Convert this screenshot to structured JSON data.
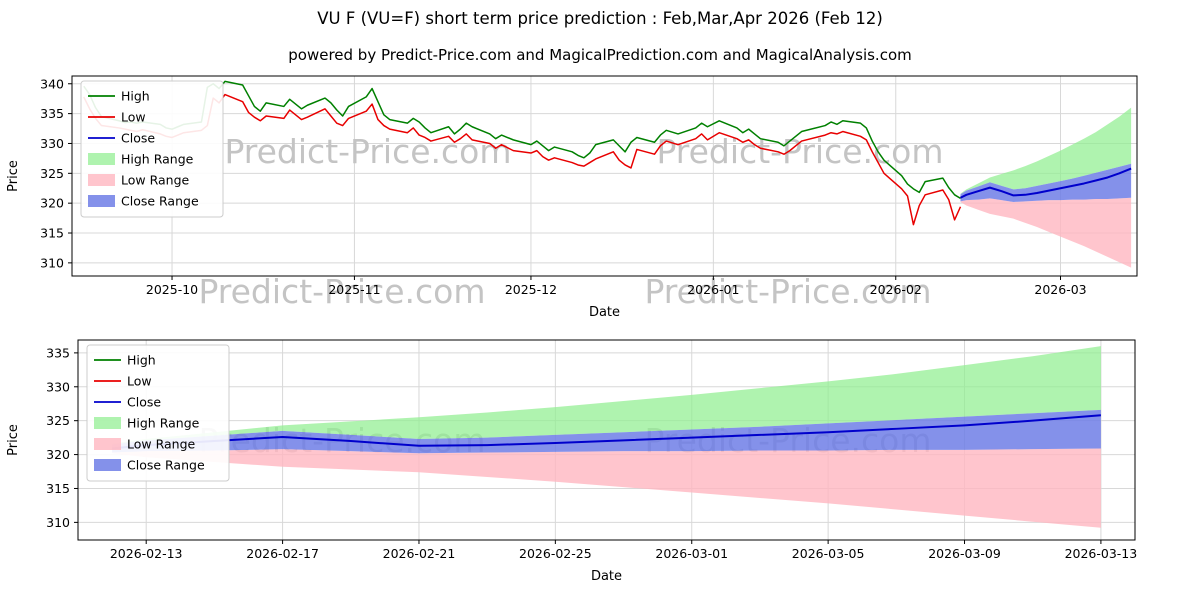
{
  "title": "VU F (VU=F) short term price prediction : Feb,Mar,Apr 2026 (Feb 12)",
  "subtitle": "powered by Predict-Price.com and MagicalPrediction.com and MagicalAnalysis.com",
  "watermark_text": "Predict-Price.com",
  "axes": {
    "x_label": "Date",
    "y_label": "Price"
  },
  "legend": [
    "High",
    "Low",
    "Close",
    "High Range",
    "Low Range",
    "Close Range"
  ],
  "colors": {
    "high": "#008000",
    "low": "#e80000",
    "close": "#0000cc",
    "high_range": "#90ee90",
    "low_range": "#ffb6c1",
    "close_range": "#6e7ee6",
    "grid": "#d8d8d8",
    "spine": "#000000",
    "watermark": "#c4c4c4",
    "text": "#000000"
  },
  "chart_data": [
    {
      "type": "line",
      "title": "price history with prediction ranges",
      "x_domain": [
        "2025-09-14",
        "2026-03-14"
      ],
      "y_domain": [
        307.8,
        341.3
      ],
      "grid": true,
      "legend_position": "upper-left",
      "y_ticks": [
        310,
        315,
        320,
        325,
        330,
        335,
        340
      ],
      "x_ticks": [
        {
          "v": "2025-10-01",
          "label": "2025-10"
        },
        {
          "v": "2025-11-01",
          "label": "2025-11"
        },
        {
          "v": "2025-12-01",
          "label": "2025-12"
        },
        {
          "v": "2026-01-01",
          "label": "2026-01"
        },
        {
          "v": "2026-02-01",
          "label": "2026-02"
        },
        {
          "v": "2026-03-01",
          "label": "2026-03"
        }
      ],
      "history": {
        "dates": [
          "2025-09-16",
          "2025-09-17",
          "2025-09-18",
          "2025-09-19",
          "2025-09-22",
          "2025-09-23",
          "2025-09-24",
          "2025-09-25",
          "2025-09-26",
          "2025-09-29",
          "2025-09-30",
          "2025-10-01",
          "2025-10-02",
          "2025-10-03",
          "2025-10-06",
          "2025-10-07",
          "2025-10-08",
          "2025-10-09",
          "2025-10-10",
          "2025-10-13",
          "2025-10-14",
          "2025-10-15",
          "2025-10-16",
          "2025-10-17",
          "2025-10-20",
          "2025-10-21",
          "2025-10-22",
          "2025-10-23",
          "2025-10-24",
          "2025-10-27",
          "2025-10-28",
          "2025-10-29",
          "2025-10-30",
          "2025-10-31",
          "2025-11-03",
          "2025-11-04",
          "2025-11-05",
          "2025-11-06",
          "2025-11-07",
          "2025-11-10",
          "2025-11-11",
          "2025-11-12",
          "2025-11-13",
          "2025-11-14",
          "2025-11-17",
          "2025-11-18",
          "2025-11-19",
          "2025-11-20",
          "2025-11-21",
          "2025-11-24",
          "2025-11-25",
          "2025-11-26",
          "2025-11-28",
          "2025-12-01",
          "2025-12-02",
          "2025-12-03",
          "2025-12-04",
          "2025-12-05",
          "2025-12-08",
          "2025-12-09",
          "2025-12-10",
          "2025-12-11",
          "2025-12-12",
          "2025-12-15",
          "2025-12-16",
          "2025-12-17",
          "2025-12-18",
          "2025-12-19",
          "2025-12-22",
          "2025-12-23",
          "2025-12-24",
          "2025-12-26",
          "2025-12-29",
          "2025-12-30",
          "2025-12-31",
          "2026-01-02",
          "2026-01-05",
          "2026-01-06",
          "2026-01-07",
          "2026-01-08",
          "2026-01-09",
          "2026-01-12",
          "2026-01-13",
          "2026-01-14",
          "2026-01-15",
          "2026-01-16",
          "2026-01-20",
          "2026-01-21",
          "2026-01-22",
          "2026-01-23",
          "2026-01-26",
          "2026-01-27",
          "2026-01-28",
          "2026-01-29",
          "2026-01-30",
          "2026-02-02",
          "2026-02-03",
          "2026-02-04",
          "2026-02-05",
          "2026-02-06",
          "2026-02-09",
          "2026-02-10",
          "2026-02-11",
          "2026-02-12"
        ],
        "high": [
          339.6,
          338.2,
          336.0,
          334.5,
          333.8,
          333.5,
          333.6,
          333.4,
          333.6,
          333.2,
          332.6,
          332.4,
          332.8,
          333.2,
          333.6,
          339.4,
          340.0,
          339.2,
          340.4,
          339.8,
          338.0,
          336.2,
          335.4,
          336.8,
          336.2,
          337.4,
          336.6,
          335.8,
          336.4,
          337.6,
          336.8,
          335.6,
          334.6,
          336.2,
          337.8,
          339.2,
          337.0,
          334.8,
          334.0,
          333.4,
          334.2,
          333.6,
          332.6,
          331.8,
          332.8,
          331.6,
          332.4,
          333.4,
          332.8,
          331.6,
          330.8,
          331.4,
          330.6,
          329.8,
          330.4,
          329.6,
          328.8,
          329.4,
          328.6,
          328.0,
          327.6,
          328.4,
          329.8,
          330.6,
          329.6,
          328.6,
          330.2,
          331.0,
          330.2,
          331.4,
          332.2,
          331.6,
          332.6,
          333.4,
          332.8,
          333.8,
          332.6,
          331.8,
          332.4,
          331.6,
          330.8,
          330.2,
          329.6,
          330.4,
          331.2,
          332.0,
          333.0,
          333.6,
          333.2,
          333.8,
          333.4,
          332.6,
          330.4,
          328.6,
          327.2,
          324.6,
          323.2,
          322.4,
          321.8,
          323.6,
          324.2,
          322.6,
          321.4,
          320.8
        ],
        "low": [
          337.8,
          335.8,
          334.2,
          333.0,
          332.6,
          332.4,
          332.2,
          332.0,
          332.3,
          331.6,
          331.2,
          331.0,
          331.4,
          331.8,
          332.2,
          333.0,
          337.6,
          336.8,
          338.2,
          337.0,
          335.2,
          334.4,
          333.8,
          334.6,
          334.2,
          335.6,
          334.8,
          334.0,
          334.4,
          335.8,
          334.6,
          333.4,
          333.0,
          334.2,
          335.4,
          336.6,
          334.0,
          333.0,
          332.4,
          331.8,
          332.6,
          331.4,
          331.0,
          330.4,
          331.2,
          330.2,
          330.8,
          331.6,
          330.6,
          330.0,
          329.2,
          329.8,
          328.8,
          328.4,
          328.8,
          327.8,
          327.2,
          327.6,
          326.8,
          326.4,
          326.2,
          326.8,
          327.4,
          328.6,
          327.2,
          326.4,
          325.9,
          329.0,
          328.2,
          329.6,
          330.4,
          329.8,
          330.8,
          331.6,
          330.6,
          331.8,
          330.8,
          330.2,
          330.6,
          329.8,
          329.2,
          328.6,
          328.2,
          328.8,
          329.6,
          330.4,
          331.4,
          331.8,
          331.6,
          332.0,
          331.2,
          330.6,
          328.6,
          326.8,
          325.0,
          322.4,
          321.2,
          316.4,
          319.6,
          321.4,
          322.2,
          320.6,
          317.2,
          319.4
        ]
      },
      "prediction": {
        "dates": [
          "2026-02-12",
          "2026-02-13",
          "2026-02-15",
          "2026-02-17",
          "2026-02-19",
          "2026-02-21",
          "2026-02-23",
          "2026-02-25",
          "2026-02-27",
          "2026-03-01",
          "2026-03-03",
          "2026-03-05",
          "2026-03-07",
          "2026-03-09",
          "2026-03-11",
          "2026-03-13"
        ],
        "close": [
          320.9,
          321.4,
          322.0,
          322.6,
          322.0,
          321.3,
          321.4,
          321.7,
          322.1,
          322.5,
          322.9,
          323.3,
          323.8,
          324.3,
          325.0,
          325.8
        ],
        "close_high": [
          321.5,
          322.1,
          322.8,
          323.5,
          322.9,
          322.3,
          322.5,
          322.9,
          323.3,
          323.7,
          324.1,
          324.6,
          325.1,
          325.6,
          326.1,
          326.6
        ],
        "close_low": [
          320.3,
          320.5,
          320.6,
          320.8,
          320.5,
          320.2,
          320.3,
          320.4,
          320.5,
          320.5,
          320.6,
          320.6,
          320.7,
          320.7,
          320.8,
          320.9
        ],
        "high_top": [
          321.6,
          322.3,
          323.3,
          324.3,
          324.9,
          325.5,
          326.2,
          327.0,
          327.9,
          328.8,
          329.8,
          330.8,
          331.9,
          333.2,
          334.5,
          336.0
        ],
        "low_bottom": [
          320.2,
          319.6,
          318.9,
          318.2,
          317.8,
          317.4,
          316.7,
          316.0,
          315.2,
          314.4,
          313.6,
          312.8,
          311.9,
          311.0,
          310.1,
          309.2
        ]
      }
    },
    {
      "type": "line",
      "title": "prediction detail Feb 13 - Mar 13 2026",
      "x_domain": [
        "2026-02-11",
        "2026-03-14"
      ],
      "y_domain": [
        307.4,
        336.9
      ],
      "grid": true,
      "legend_position": "upper-left",
      "y_ticks": [
        310,
        315,
        320,
        325,
        330,
        335
      ],
      "x_ticks": [
        {
          "v": "2026-02-13",
          "label": "2026-02-13"
        },
        {
          "v": "2026-02-17",
          "label": "2026-02-17"
        },
        {
          "v": "2026-02-21",
          "label": "2026-02-21"
        },
        {
          "v": "2026-02-25",
          "label": "2026-02-25"
        },
        {
          "v": "2026-03-01",
          "label": "2026-03-01"
        },
        {
          "v": "2026-03-05",
          "label": "2026-03-05"
        },
        {
          "v": "2026-03-09",
          "label": "2026-03-09"
        },
        {
          "v": "2026-03-13",
          "label": "2026-03-13"
        }
      ],
      "prediction": {
        "dates": [
          "2026-02-12",
          "2026-02-13",
          "2026-02-15",
          "2026-02-17",
          "2026-02-19",
          "2026-02-21",
          "2026-02-23",
          "2026-02-25",
          "2026-02-27",
          "2026-03-01",
          "2026-03-03",
          "2026-03-05",
          "2026-03-07",
          "2026-03-09",
          "2026-03-11",
          "2026-03-13"
        ],
        "close": [
          320.9,
          321.4,
          322.0,
          322.6,
          322.0,
          321.3,
          321.4,
          321.7,
          322.1,
          322.5,
          322.9,
          323.3,
          323.8,
          324.3,
          325.0,
          325.8
        ],
        "close_high": [
          321.5,
          322.1,
          322.8,
          323.5,
          322.9,
          322.3,
          322.5,
          322.9,
          323.3,
          323.7,
          324.1,
          324.6,
          325.1,
          325.6,
          326.1,
          326.6
        ],
        "close_low": [
          320.3,
          320.5,
          320.6,
          320.8,
          320.5,
          320.2,
          320.3,
          320.4,
          320.5,
          320.5,
          320.6,
          320.6,
          320.7,
          320.7,
          320.8,
          320.9
        ],
        "high_top": [
          321.6,
          322.3,
          323.3,
          324.3,
          324.9,
          325.5,
          326.2,
          327.0,
          327.9,
          328.8,
          329.8,
          330.8,
          331.9,
          333.2,
          334.5,
          336.0
        ],
        "low_bottom": [
          320.2,
          319.6,
          318.9,
          318.2,
          317.8,
          317.4,
          316.7,
          316.0,
          315.2,
          314.4,
          313.6,
          312.8,
          311.9,
          311.0,
          310.1,
          309.2
        ]
      }
    }
  ]
}
